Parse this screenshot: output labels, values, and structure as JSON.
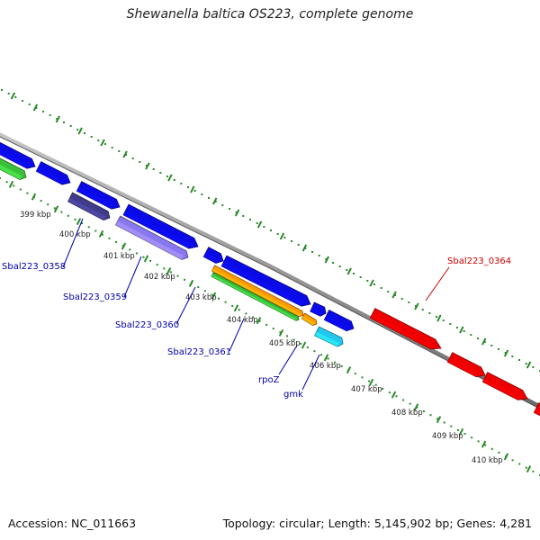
{
  "title": "Shewanella baltica OS223, complete genome",
  "footer": {
    "accession": "Accession: NC_011663",
    "stats": "Topology: circular; Length: 5,145,902 bp; Genes: 4,281"
  },
  "colors": {
    "backbone": "#8a8a8a",
    "tick_dots": "#2a8a2a",
    "label_blue": "#0000aa",
    "label_red": "#cc0000",
    "gene_blue": "#0a0ae6",
    "gene_red": "#ee0000",
    "gene_green": "#3bbf3b",
    "gene_orange": "#ff9900",
    "gene_cyan": "#22c8ee",
    "gene_lavender": "#8877ee",
    "gene_navy": "#403c8a"
  },
  "ruler": [
    "399 kbp",
    "400 kbp",
    "401 kbp",
    "402 kbp",
    "403 kbp",
    "404 kbp",
    "405 kbp",
    "406 kbp",
    "407 kbp",
    "408 kbp",
    "409 kbp",
    "410 kbp"
  ],
  "gene_labels": [
    {
      "text": "Sbal223_0358",
      "color": "label_blue"
    },
    {
      "text": "Sbal223_0359",
      "color": "label_blue"
    },
    {
      "text": "Sbal223_0360",
      "color": "label_blue"
    },
    {
      "text": "Sbal223_0361",
      "color": "label_blue"
    },
    {
      "text": "rpoZ",
      "color": "label_blue"
    },
    {
      "text": "gmk",
      "color": "label_blue"
    },
    {
      "text": "Sbal223_0364",
      "color": "label_red"
    }
  ]
}
